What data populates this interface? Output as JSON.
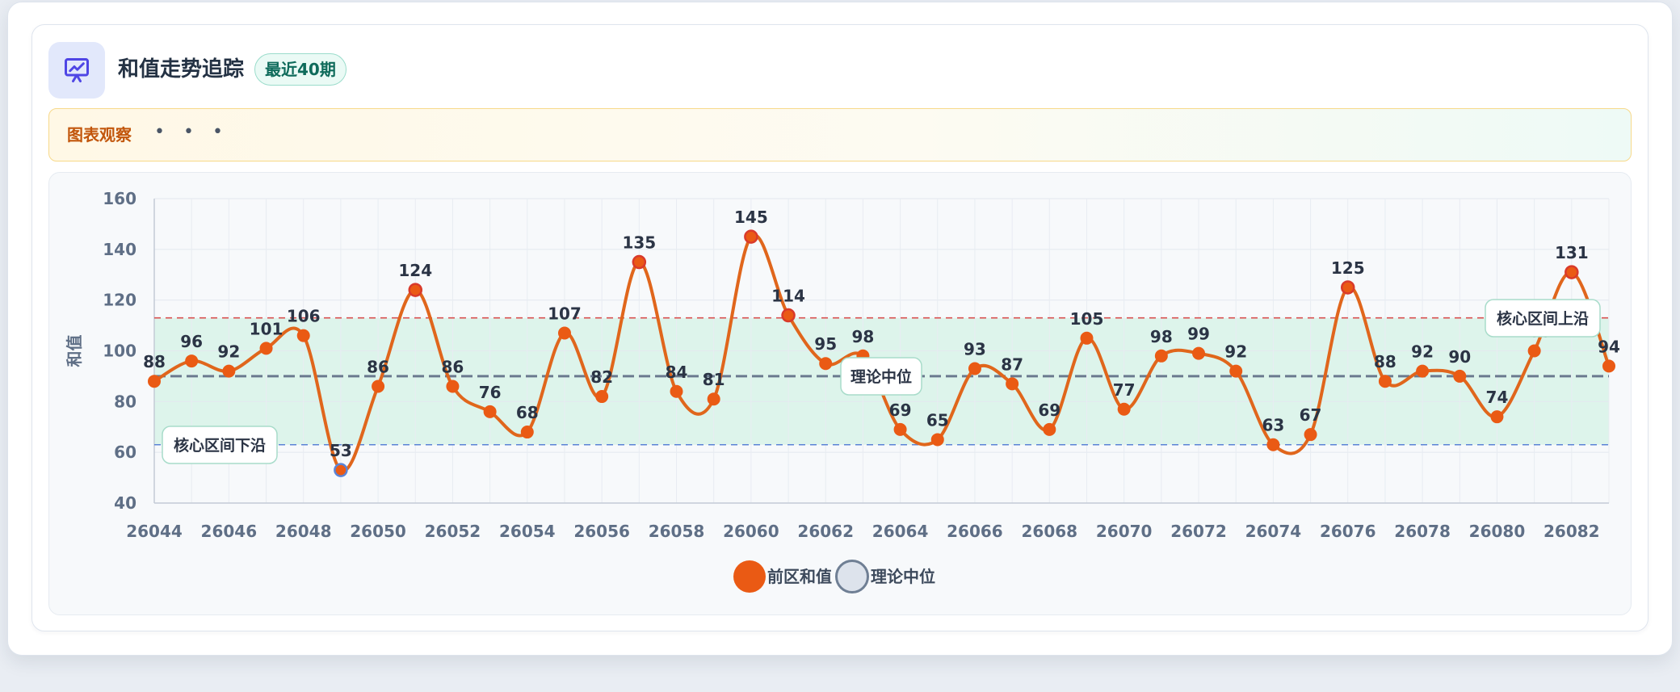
{
  "header": {
    "title": "和值走势追踪",
    "badge": "最近40期",
    "icon": "presentation-chart-icon"
  },
  "notice": {
    "label": "图表观察",
    "dots": "• • •"
  },
  "colors": {
    "line": "#e0661c",
    "point": "#ea5a14",
    "band": "#d4f1e6",
    "upper_line": "#d95050",
    "lower_line": "#5b84d6",
    "median_line": "#6b7a8f",
    "accent": "#5a55d6"
  },
  "legend": {
    "series_a": "前区和值",
    "series_b": "理论中位"
  },
  "chart_data": {
    "type": "line",
    "ylabel": "和值",
    "xlabel": "",
    "ylim": [
      40,
      160
    ],
    "yticks": [
      40,
      60,
      80,
      100,
      120,
      140,
      160
    ],
    "xlim": [
      26044,
      26083
    ],
    "xticks": [
      26044,
      26046,
      26048,
      26050,
      26052,
      26054,
      26056,
      26058,
      26060,
      26062,
      26064,
      26066,
      26068,
      26070,
      26072,
      26074,
      26076,
      26078,
      26080,
      26082
    ],
    "x": [
      26044,
      26045,
      26046,
      26047,
      26048,
      26049,
      26050,
      26051,
      26052,
      26053,
      26054,
      26055,
      26056,
      26057,
      26058,
      26059,
      26060,
      26061,
      26062,
      26063,
      26064,
      26065,
      26066,
      26067,
      26068,
      26069,
      26070,
      26071,
      26072,
      26073,
      26074,
      26075,
      26076,
      26077,
      26078,
      26079,
      26080,
      26081,
      26082,
      26083
    ],
    "series": [
      {
        "name": "前区和值",
        "values": [
          88,
          96,
          92,
          101,
          106,
          53,
          86,
          124,
          86,
          76,
          68,
          107,
          82,
          135,
          84,
          81,
          145,
          114,
          95,
          98,
          69,
          65,
          93,
          87,
          69,
          105,
          77,
          98,
          99,
          92,
          63,
          67,
          125,
          88,
          92,
          90,
          74,
          100,
          131,
          94
        ]
      }
    ],
    "reference_lines": {
      "median": {
        "label": "理论中位",
        "value": 90
      },
      "upper": {
        "label": "核心区间上沿",
        "value": 113
      },
      "lower": {
        "label": "核心区间下沿",
        "value": 63
      }
    },
    "grid": true
  }
}
